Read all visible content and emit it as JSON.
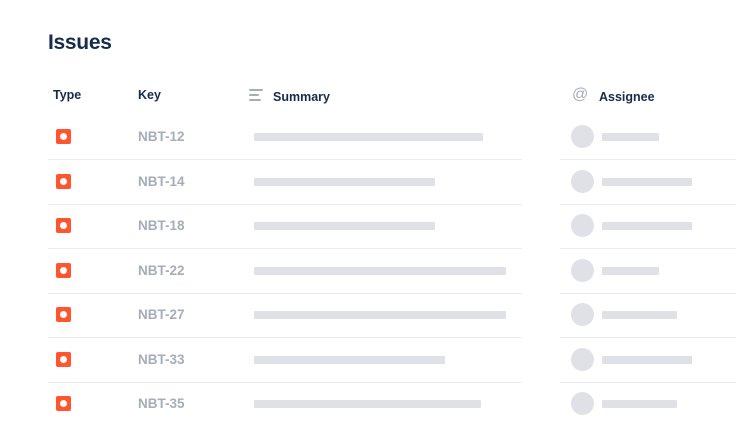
{
  "title": "Issues",
  "columns": {
    "type": "Type",
    "key": "Key",
    "summary": "Summary",
    "assignee": "Assignee"
  },
  "icons": {
    "summary": "lines-icon",
    "assignee": "at-icon",
    "issue_type": "bug-icon"
  },
  "colors": {
    "issue_type": "#ff5630",
    "placeholder": "#dfe1e6",
    "heading": "#172b4d",
    "key": "#a5adba"
  },
  "rows": [
    {
      "key": "NBT-12"
    },
    {
      "key": "NBT-14"
    },
    {
      "key": "NBT-18"
    },
    {
      "key": "NBT-22"
    },
    {
      "key": "NBT-27"
    },
    {
      "key": "NBT-33"
    },
    {
      "key": "NBT-35"
    }
  ]
}
